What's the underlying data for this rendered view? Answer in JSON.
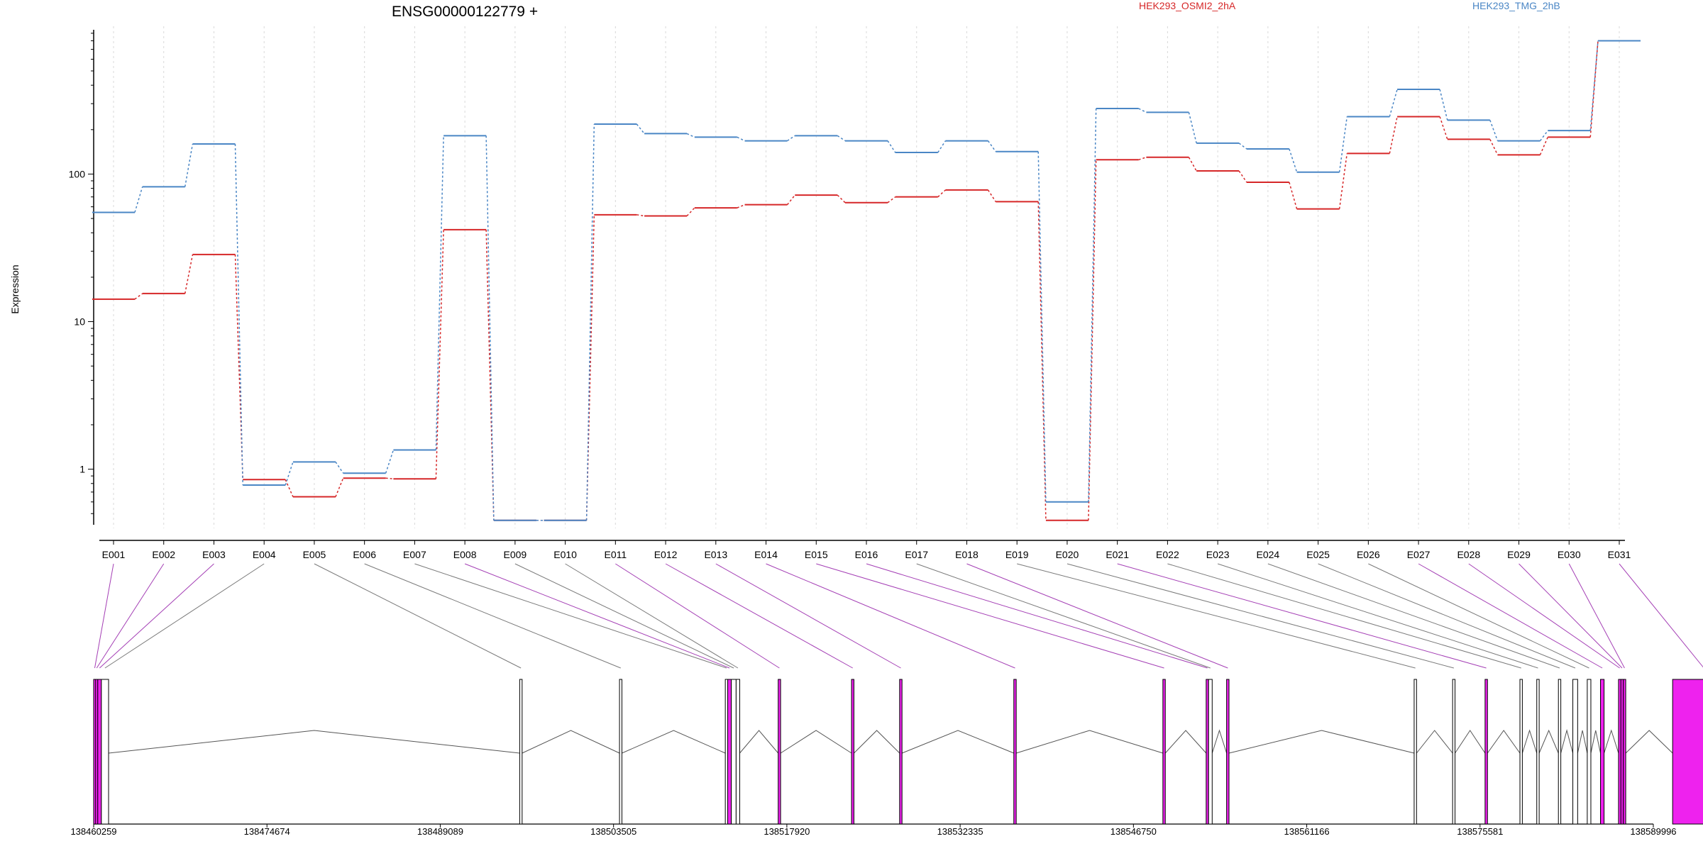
{
  "chart_data": {
    "type": "line",
    "title": "ENSG00000122779 +",
    "ylabel": "Expression",
    "xlabel": "",
    "yscale": "log",
    "ylim": [
      0.42,
      950
    ],
    "yticks": [
      {
        "value": 1,
        "label": "1"
      },
      {
        "value": 10,
        "label": "10"
      },
      {
        "value": 100,
        "label": "100"
      }
    ],
    "grid": "vertical dotted at exons",
    "legend": {
      "placement": "top"
    },
    "categories": [
      "E001",
      "E002",
      "E003",
      "E004",
      "E005",
      "E006",
      "E007",
      "E008",
      "E009",
      "E010",
      "E011",
      "E012",
      "E013",
      "E014",
      "E015",
      "E016",
      "E017",
      "E018",
      "E019",
      "E020",
      "E021",
      "E022",
      "E023",
      "E024",
      "E025",
      "E026",
      "E027",
      "E028",
      "E029",
      "E030",
      "E031"
    ],
    "series": [
      {
        "name": "HEK293_OSMI2_2hA",
        "color": "#d62728",
        "values": [
          14.2,
          15.5,
          28.5,
          0.85,
          0.65,
          0.87,
          0.86,
          42,
          0.45,
          0.45,
          53,
          52,
          59,
          62,
          72,
          64,
          70,
          78,
          65,
          0.45,
          125,
          130,
          105,
          88,
          58,
          138,
          245,
          172,
          135,
          178,
          800
        ]
      },
      {
        "name": "HEK293_TMG_2hB",
        "color": "#4a86c5",
        "values": [
          55,
          82,
          160,
          0.78,
          1.12,
          0.94,
          1.35,
          182,
          0.45,
          0.45,
          218,
          188,
          178,
          168,
          182,
          168,
          140,
          168,
          142,
          0.6,
          278,
          262,
          162,
          148,
          103,
          245,
          375,
          232,
          168,
          197,
          800
        ]
      }
    ],
    "gene_model": {
      "coordinates": [
        "138460259",
        "138474674",
        "138489089",
        "138503505",
        "138517920",
        "138532335",
        "138546750",
        "138561166",
        "138575581",
        "138589996"
      ],
      "coord_range": [
        138460259,
        138589996
      ],
      "exon_starts": [
        138460259,
        138460420,
        138460600,
        138460900,
        138495700,
        138504000,
        138512800,
        138513000,
        138513300,
        138513700,
        138517200,
        138523300,
        138527300,
        138536800,
        138549200,
        138552800,
        138553000,
        138554500,
        138570100,
        138573300,
        138576000,
        138578900,
        138580300,
        138582100,
        138583300,
        138584500,
        138585600,
        138587100,
        138587300,
        138587500,
        138591600
      ],
      "exon_ends": [
        138460420,
        138460600,
        138460900,
        138461500,
        138495900,
        138504200,
        138513000,
        138513300,
        138513700,
        138514000,
        138517400,
        138523500,
        138527500,
        138537000,
        138549400,
        138553000,
        138553300,
        138554700,
        138570300,
        138573500,
        138576200,
        138579100,
        138580500,
        138582300,
        138583700,
        138584800,
        138585900,
        138587300,
        138587500,
        138587700,
        138596800
      ],
      "differential": [
        true,
        true,
        true,
        false,
        false,
        false,
        false,
        true,
        false,
        false,
        true,
        true,
        true,
        true,
        true,
        true,
        false,
        true,
        false,
        false,
        true,
        false,
        false,
        false,
        false,
        false,
        true,
        true,
        true,
        true,
        true
      ],
      "highlight_color": "#ee22ee"
    }
  }
}
